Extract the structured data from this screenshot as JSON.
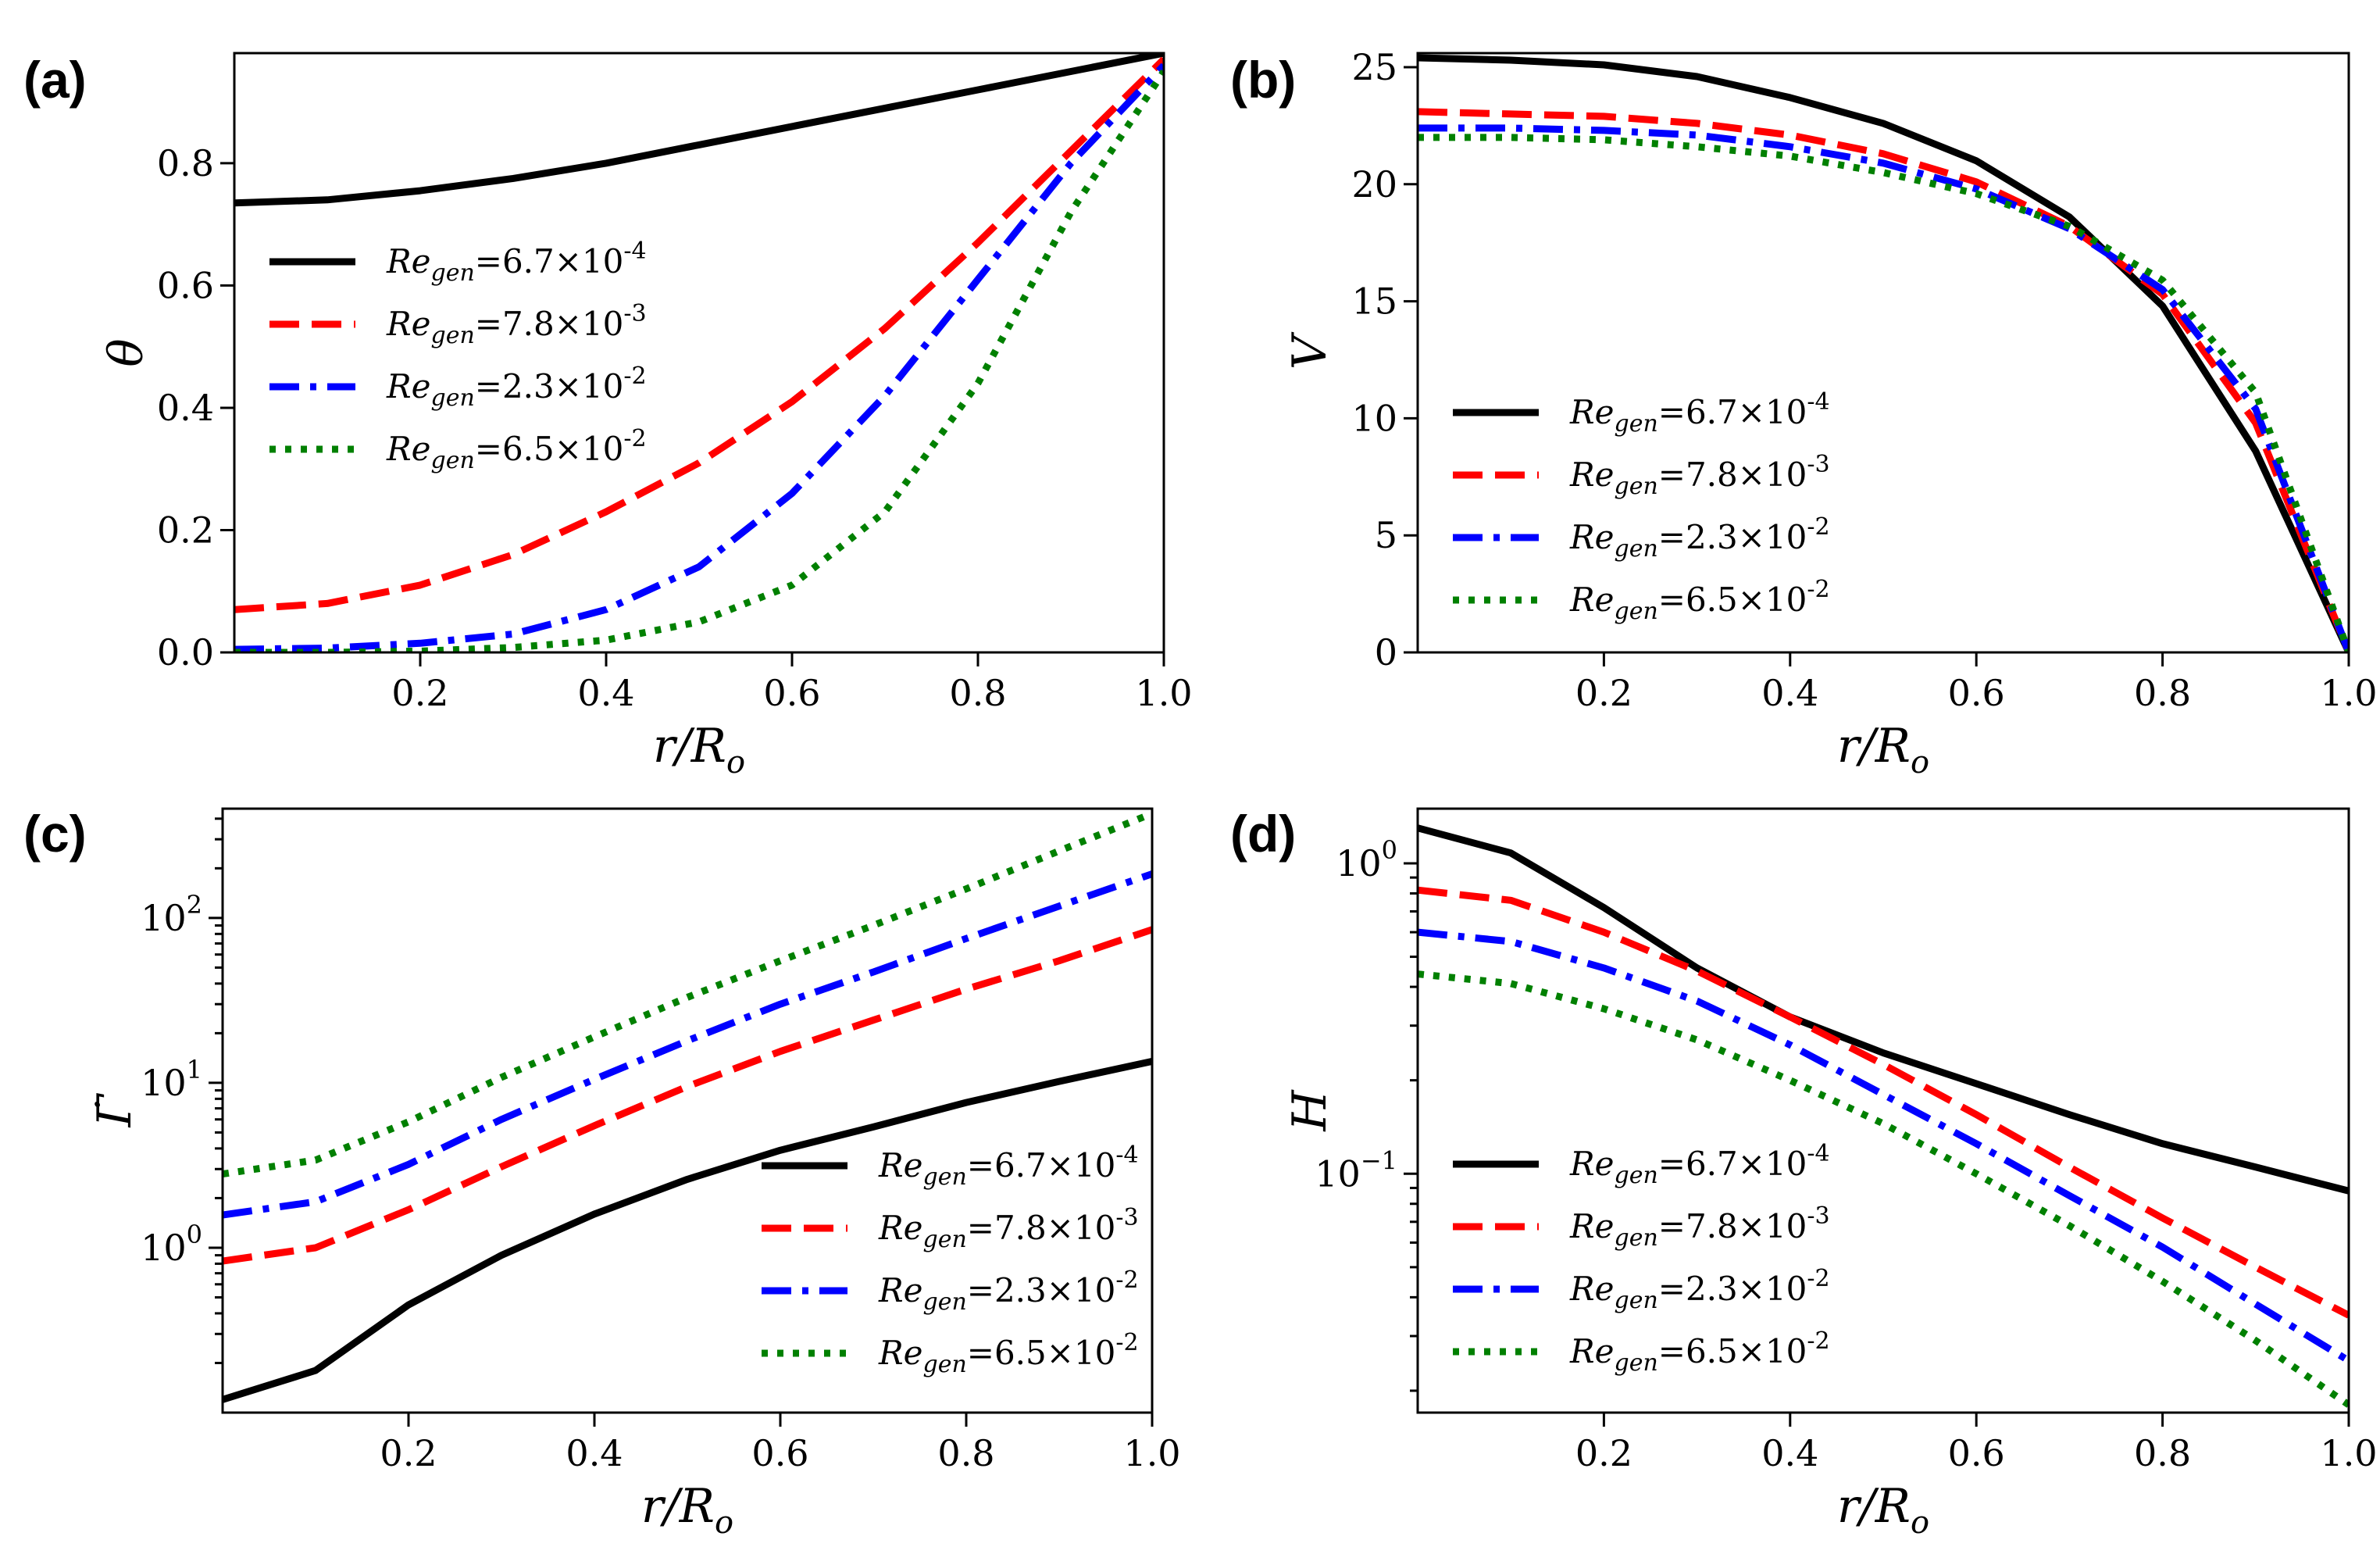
{
  "figure": {
    "legend_labels": [
      {
        "re": "Re",
        "sub": "gen",
        "mant": "=6.7×10",
        "exp": "-4"
      },
      {
        "re": "Re",
        "sub": "gen",
        "mant": "=7.8×10",
        "exp": "-3"
      },
      {
        "re": "Re",
        "sub": "gen",
        "mant": "=2.3×10",
        "exp": "-2"
      },
      {
        "re": "Re",
        "sub": "gen",
        "mant": "=6.5×10",
        "exp": "-2"
      }
    ],
    "series_styles": [
      {
        "color": "#000000",
        "dash": "solid"
      },
      {
        "color": "#ff0000",
        "dash": "dashed"
      },
      {
        "color": "#0000ff",
        "dash": "dashdot"
      },
      {
        "color": "#008000",
        "dash": "dotted"
      }
    ]
  },
  "chart_data": [
    {
      "id": "a",
      "panel_label": "(a)",
      "type": "line",
      "yscale": "linear",
      "xlabel": "r/R",
      "xlabel_sub": "o",
      "ylabel": "θ",
      "ylabel_sub": "",
      "xlim": [
        0.0,
        1.0
      ],
      "ylim": [
        0.0,
        0.98
      ],
      "xticks": [
        {
          "v": 0.2,
          "t": "0.2"
        },
        {
          "v": 0.4,
          "t": "0.4"
        },
        {
          "v": 0.6,
          "t": "0.6"
        },
        {
          "v": 0.8,
          "t": "0.8"
        },
        {
          "v": 1.0,
          "t": "1.0"
        }
      ],
      "yticks": [
        {
          "v": 0.0,
          "t": "0.0"
        },
        {
          "v": 0.2,
          "t": "0.2"
        },
        {
          "v": 0.4,
          "t": "0.4"
        },
        {
          "v": 0.6,
          "t": "0.6"
        },
        {
          "v": 0.8,
          "t": "0.8"
        }
      ],
      "legend_loc": "center-left",
      "x": [
        0.0,
        0.1,
        0.2,
        0.3,
        0.4,
        0.5,
        0.6,
        0.7,
        0.8,
        0.9,
        1.0
      ],
      "series": [
        {
          "name": "Re_gen=6.7×10^-4",
          "values": [
            0.735,
            0.74,
            0.755,
            0.775,
            0.8,
            0.83,
            0.86,
            0.89,
            0.92,
            0.95,
            0.98
          ]
        },
        {
          "name": "Re_gen=7.8×10^-3",
          "values": [
            0.07,
            0.08,
            0.11,
            0.16,
            0.23,
            0.31,
            0.41,
            0.53,
            0.67,
            0.82,
            0.97
          ]
        },
        {
          "name": "Re_gen=2.3×10^-2",
          "values": [
            0.005,
            0.007,
            0.015,
            0.03,
            0.07,
            0.14,
            0.26,
            0.42,
            0.61,
            0.8,
            0.96
          ]
        },
        {
          "name": "Re_gen=6.5×10^-2",
          "values": [
            0.0,
            0.0,
            0.002,
            0.008,
            0.02,
            0.05,
            0.11,
            0.23,
            0.44,
            0.72,
            0.95
          ]
        }
      ]
    },
    {
      "id": "b",
      "panel_label": "(b)",
      "type": "line",
      "yscale": "linear",
      "xlabel": "r/R",
      "xlabel_sub": "o",
      "ylabel": "V",
      "ylabel_sub": "",
      "xlim": [
        0.0,
        1.0
      ],
      "ylim": [
        0.0,
        25.6
      ],
      "xticks": [
        {
          "v": 0.2,
          "t": "0.2"
        },
        {
          "v": 0.4,
          "t": "0.4"
        },
        {
          "v": 0.6,
          "t": "0.6"
        },
        {
          "v": 0.8,
          "t": "0.8"
        },
        {
          "v": 1.0,
          "t": "1.0"
        }
      ],
      "yticks": [
        {
          "v": 0,
          "t": "0"
        },
        {
          "v": 5,
          "t": "5"
        },
        {
          "v": 10,
          "t": "10"
        },
        {
          "v": 15,
          "t": "15"
        },
        {
          "v": 20,
          "t": "20"
        },
        {
          "v": 25,
          "t": "25"
        }
      ],
      "legend_loc": "lower-left",
      "x": [
        0.0,
        0.1,
        0.2,
        0.3,
        0.4,
        0.5,
        0.6,
        0.7,
        0.8,
        0.9,
        1.0
      ],
      "series": [
        {
          "name": "Re_gen=6.7×10^-4",
          "values": [
            25.4,
            25.3,
            25.1,
            24.6,
            23.7,
            22.6,
            21.0,
            18.6,
            14.8,
            8.6,
            0.0
          ]
        },
        {
          "name": "Re_gen=7.8×10^-3",
          "values": [
            23.1,
            23.0,
            22.9,
            22.6,
            22.1,
            21.3,
            20.1,
            18.2,
            15.3,
            9.8,
            0.0
          ]
        },
        {
          "name": "Re_gen=2.3×10^-2",
          "values": [
            22.4,
            22.4,
            22.3,
            22.1,
            21.6,
            20.9,
            19.8,
            18.1,
            15.5,
            10.4,
            0.0
          ]
        },
        {
          "name": "Re_gen=6.5×10^-2",
          "values": [
            22.0,
            22.0,
            21.9,
            21.6,
            21.2,
            20.5,
            19.6,
            18.2,
            15.9,
            11.1,
            0.0
          ]
        }
      ]
    },
    {
      "id": "c",
      "panel_label": "(c)",
      "type": "line",
      "yscale": "log",
      "xlabel": "r/R",
      "xlabel_sub": "o",
      "ylabel": "Γ̇",
      "ylabel_sub": "",
      "xlim": [
        0.0,
        1.0
      ],
      "ylim": [
        0.1,
        460
      ],
      "xticks": [
        {
          "v": 0.2,
          "t": "0.2"
        },
        {
          "v": 0.4,
          "t": "0.4"
        },
        {
          "v": 0.6,
          "t": "0.6"
        },
        {
          "v": 0.8,
          "t": "0.8"
        },
        {
          "v": 1.0,
          "t": "1.0"
        }
      ],
      "yticks": [
        {
          "v": 1,
          "t": "10",
          "e": "0"
        },
        {
          "v": 10,
          "t": "10",
          "e": "1"
        },
        {
          "v": 100,
          "t": "10",
          "e": "2"
        }
      ],
      "legend_loc": "lower-right",
      "x": [
        0.0,
        0.1,
        0.2,
        0.3,
        0.4,
        0.5,
        0.6,
        0.7,
        0.8,
        0.9,
        1.0
      ],
      "series": [
        {
          "name": "Re_gen=6.7×10^-4",
          "values": [
            0.12,
            0.18,
            0.45,
            0.9,
            1.6,
            2.6,
            3.9,
            5.4,
            7.6,
            10.2,
            13.5
          ]
        },
        {
          "name": "Re_gen=7.8×10^-3",
          "values": [
            0.83,
            1.0,
            1.7,
            3.1,
            5.5,
            9.5,
            15.5,
            24.0,
            37.0,
            55.0,
            85.0
          ]
        },
        {
          "name": "Re_gen=2.3×10^-2",
          "values": [
            1.58,
            1.9,
            3.2,
            6.0,
            10.5,
            18.0,
            30.0,
            47.0,
            75.0,
            118.0,
            185.0
          ]
        },
        {
          "name": "Re_gen=6.5×10^-2",
          "values": [
            2.8,
            3.4,
            5.8,
            10.8,
            19.0,
            33.0,
            55.0,
            90.0,
            150.0,
            255.0,
            430.0
          ]
        }
      ]
    },
    {
      "id": "d",
      "panel_label": "(d)",
      "type": "line",
      "yscale": "log",
      "xlabel": "r/R",
      "xlabel_sub": "o",
      "ylabel": "H",
      "ylabel_sub": "",
      "xlim": [
        0.0,
        1.0
      ],
      "ylim": [
        0.017,
        1.5
      ],
      "xticks": [
        {
          "v": 0.2,
          "t": "0.2"
        },
        {
          "v": 0.4,
          "t": "0.4"
        },
        {
          "v": 0.6,
          "t": "0.6"
        },
        {
          "v": 0.8,
          "t": "0.8"
        },
        {
          "v": 1.0,
          "t": "1.0"
        }
      ],
      "yticks": [
        {
          "v": 0.1,
          "t": "10",
          "e": "−1"
        },
        {
          "v": 1,
          "t": "10",
          "e": "0"
        }
      ],
      "legend_loc": "lower-left",
      "x": [
        0.0,
        0.1,
        0.2,
        0.3,
        0.4,
        0.5,
        0.6,
        0.7,
        0.8,
        0.9,
        1.0
      ],
      "series": [
        {
          "name": "Re_gen=6.7×10^-4",
          "values": [
            1.3,
            1.08,
            0.72,
            0.46,
            0.32,
            0.245,
            0.195,
            0.155,
            0.125,
            0.105,
            0.088
          ]
        },
        {
          "name": "Re_gen=7.8×10^-3",
          "values": [
            0.82,
            0.76,
            0.6,
            0.45,
            0.32,
            0.225,
            0.155,
            0.105,
            0.072,
            0.05,
            0.035
          ]
        },
        {
          "name": "Re_gen=2.3×10^-2",
          "values": [
            0.6,
            0.56,
            0.46,
            0.36,
            0.26,
            0.18,
            0.125,
            0.085,
            0.058,
            0.038,
            0.025
          ]
        },
        {
          "name": "Re_gen=6.5×10^-2",
          "values": [
            0.44,
            0.41,
            0.34,
            0.27,
            0.2,
            0.145,
            0.1,
            0.068,
            0.045,
            0.029,
            0.018
          ]
        }
      ]
    }
  ]
}
